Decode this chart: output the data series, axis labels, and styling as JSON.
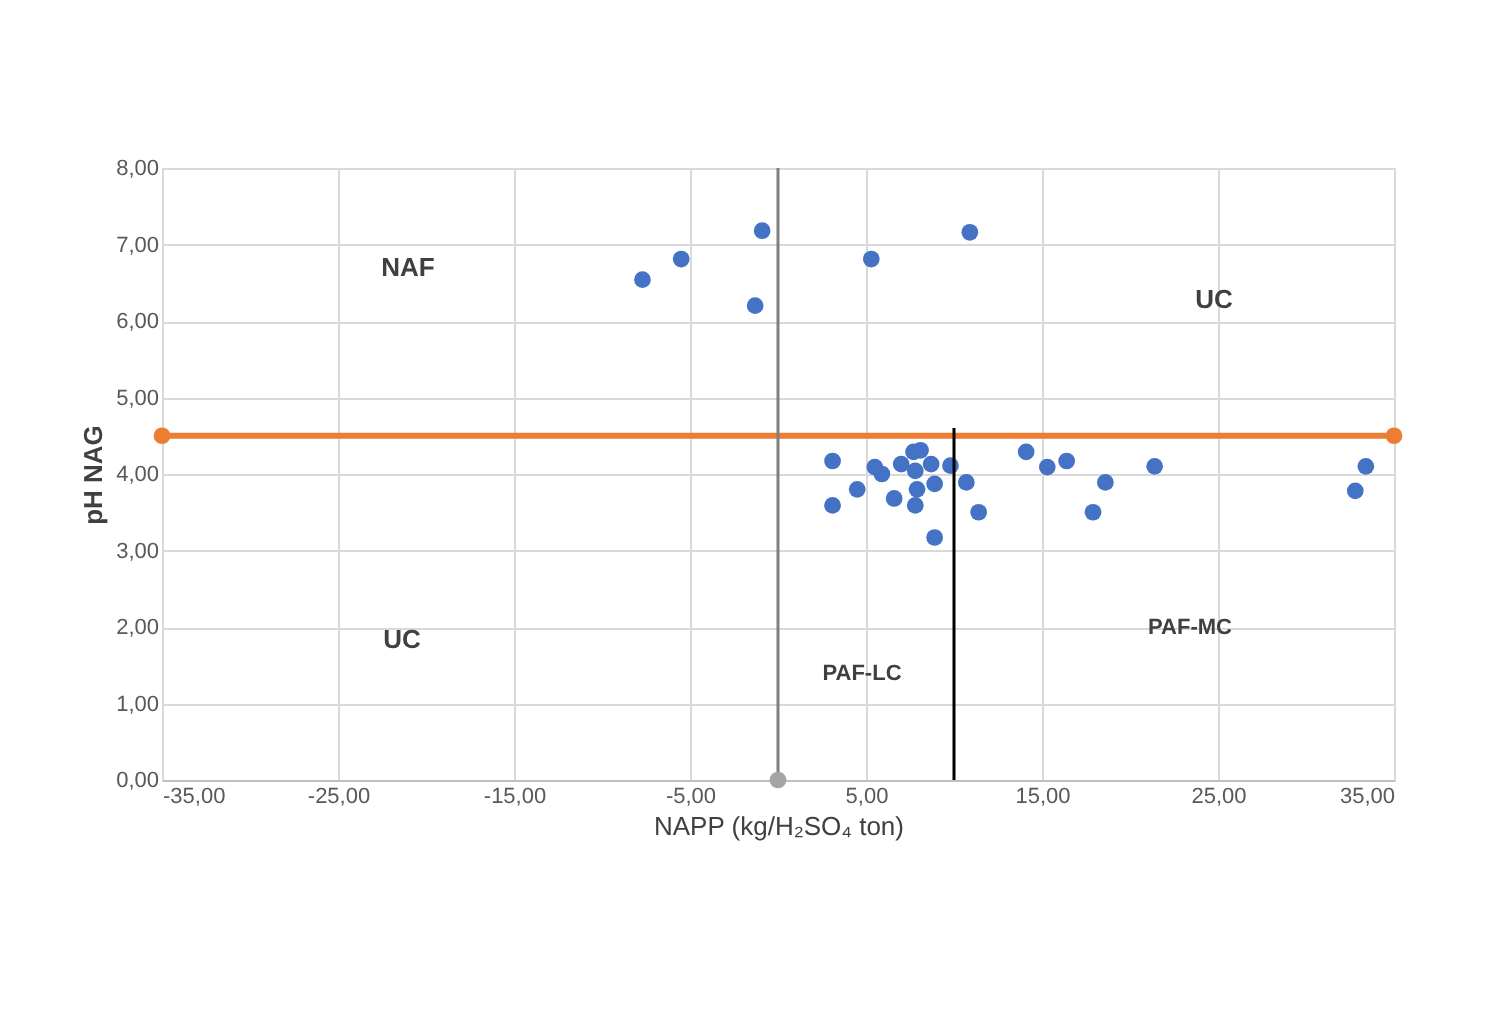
{
  "chart_data": {
    "type": "scatter",
    "xlabel": "NAPP (kg/H₂SO₄ ton)",
    "ylabel": "pH NAG",
    "xlim": [
      -35,
      35
    ],
    "ylim": [
      0,
      8
    ],
    "xticks": [
      {
        "value": -35,
        "label": "-35,00"
      },
      {
        "value": -25,
        "label": "-25,00"
      },
      {
        "value": -15,
        "label": "-15,00"
      },
      {
        "value": -5,
        "label": "-5,00"
      },
      {
        "value": 5,
        "label": "5,00"
      },
      {
        "value": 15,
        "label": "15,00"
      },
      {
        "value": 25,
        "label": "25,00"
      },
      {
        "value": 35,
        "label": "35,00"
      }
    ],
    "yticks": [
      {
        "value": 0,
        "label": "0,00"
      },
      {
        "value": 1,
        "label": "1,00"
      },
      {
        "value": 2,
        "label": "2,00"
      },
      {
        "value": 3,
        "label": "3,00"
      },
      {
        "value": 4,
        "label": "4,00"
      },
      {
        "value": 5,
        "label": "5,00"
      },
      {
        "value": 6,
        "label": "6,00"
      },
      {
        "value": 7,
        "label": "7,00"
      },
      {
        "value": 8,
        "label": "8,00"
      }
    ],
    "grid": true,
    "marker": "circle",
    "series": [
      {
        "color": "#4472c4",
        "x": [
          -7.7,
          -5.5,
          -0.9,
          -1.3,
          5.3,
          10.9,
          3.1,
          3.1,
          4.5,
          5.5,
          5.9,
          6.6,
          7.0,
          7.7,
          8.1,
          7.8,
          7.9,
          7.8,
          8.9,
          8.7,
          9.8,
          8.9,
          10.7,
          11.4,
          14.1,
          15.3,
          16.4,
          17.9,
          18.6,
          21.4,
          32.8,
          33.4
        ],
        "values": [
          6.54,
          6.81,
          7.18,
          6.2,
          6.81,
          7.16,
          4.17,
          3.59,
          3.8,
          4.09,
          4.0,
          3.68,
          4.13,
          4.29,
          4.31,
          4.04,
          3.8,
          3.59,
          3.87,
          4.13,
          4.11,
          3.17,
          3.89,
          3.5,
          4.29,
          4.09,
          4.17,
          3.5,
          3.89,
          4.1,
          3.78,
          4.1
        ]
      },
      {
        "type": "line",
        "color": "#ed7d31",
        "marker": "circle",
        "x": [
          -35,
          35
        ],
        "values": [
          4.5,
          4.5
        ]
      },
      {
        "type": "line",
        "color": "#808080",
        "marker": "none",
        "x": [
          0,
          0
        ],
        "values": [
          0,
          8
        ]
      },
      {
        "type": "scatter",
        "color": "#a5a5a5",
        "x": [
          0
        ],
        "values": [
          0
        ]
      },
      {
        "type": "line",
        "color": "#000000",
        "marker": "none",
        "x": [
          10,
          10
        ],
        "values": [
          0,
          4.6
        ]
      }
    ],
    "annotations": [
      "NAF",
      "UC",
      "UC",
      "PAF-LC",
      "PAF-MC"
    ]
  }
}
